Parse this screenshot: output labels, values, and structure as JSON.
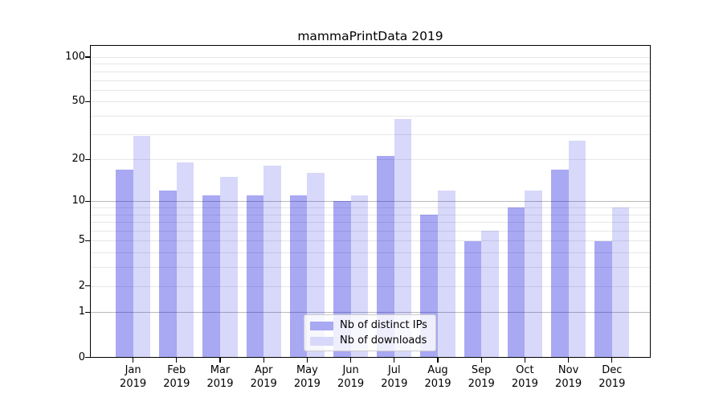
{
  "title": "mammaPrintData 2019",
  "y_axis": {
    "tick_labels": [
      "0",
      "1",
      "2",
      "5",
      "10",
      "20",
      "50",
      "100"
    ],
    "tick_values": [
      0,
      1,
      2,
      5,
      10,
      20,
      50,
      100
    ]
  },
  "x_axis": {
    "months": [
      {
        "month": "Jan",
        "year": "2019"
      },
      {
        "month": "Feb",
        "year": "2019"
      },
      {
        "month": "Mar",
        "year": "2019"
      },
      {
        "month": "Apr",
        "year": "2019"
      },
      {
        "month": "May",
        "year": "2019"
      },
      {
        "month": "Jun",
        "year": "2019"
      },
      {
        "month": "Jul",
        "year": "2019"
      },
      {
        "month": "Aug",
        "year": "2019"
      },
      {
        "month": "Sep",
        "year": "2019"
      },
      {
        "month": "Oct",
        "year": "2019"
      },
      {
        "month": "Nov",
        "year": "2019"
      },
      {
        "month": "Dec",
        "year": "2019"
      }
    ]
  },
  "legend": {
    "items": [
      {
        "label": "Nb of distinct IPs",
        "color": "#a8a8f3"
      },
      {
        "label": "Nb of downloads",
        "color": "#d8d8fa"
      }
    ]
  },
  "chart_data": {
    "type": "bar",
    "title": "mammaPrintData 2019",
    "categories": [
      "Jan 2019",
      "Feb 2019",
      "Mar 2019",
      "Apr 2019",
      "May 2019",
      "Jun 2019",
      "Jul 2019",
      "Aug 2019",
      "Sep 2019",
      "Oct 2019",
      "Nov 2019",
      "Dec 2019"
    ],
    "series": [
      {
        "name": "Nb of distinct IPs",
        "values": [
          17,
          12,
          11,
          11,
          11,
          10,
          21,
          8,
          5,
          9,
          17,
          5
        ]
      },
      {
        "name": "Nb of downloads",
        "values": [
          29,
          19,
          15,
          18,
          16,
          11,
          38,
          12,
          6,
          12,
          27,
          9
        ]
      }
    ],
    "y_scale": "symlog",
    "y_ticks": [
      0,
      1,
      2,
      5,
      10,
      20,
      50,
      100
    ],
    "ylim": [
      0,
      120
    ],
    "grid": "horizontal",
    "gridlines_dark": [
      1,
      10
    ],
    "gridlines_light": [
      2,
      3,
      4,
      5,
      6,
      7,
      8,
      9,
      20,
      30,
      40,
      50,
      60,
      70,
      80,
      90,
      100
    ],
    "legend_position": "lower center",
    "bar_colors": [
      "rgba(13,13,222,0.36)",
      "rgba(13,13,222,0.16)"
    ]
  }
}
